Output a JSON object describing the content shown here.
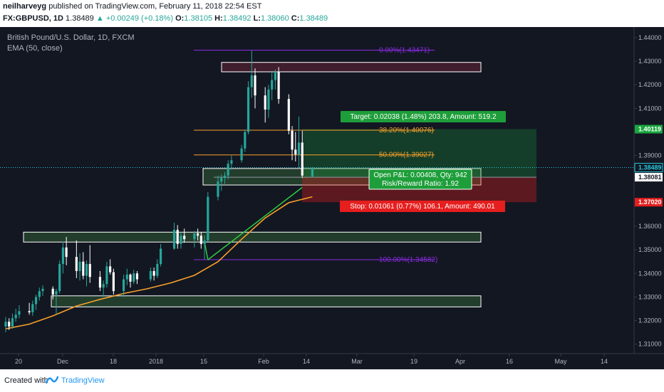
{
  "header": {
    "author": "neilharveyg",
    "published": "published on TradingView.com, February 11, 2018 22:54 EST",
    "symbol": "FX:GBPUSD, 1D",
    "last": "1.38489",
    "change": "+0.00249 (+0.18%)",
    "o_label": "O:",
    "o": "1.38105",
    "h_label": "H:",
    "h": "1.38492",
    "l_label": "L:",
    "l": "1.38060",
    "c_label": "C:",
    "c": "1.38489"
  },
  "legend": {
    "title": "British Pound/U.S. Dollar, 1D, FXCM",
    "indicator": "EMA (50, close)"
  },
  "footer": {
    "created_with": "Created with",
    "brand": "TradingView"
  },
  "colors": {
    "background": "#131722",
    "bull": "#26a69a",
    "bear": "#ffffff",
    "ema": "#f7a02a",
    "fib_purple": "#8a2be2",
    "fib_orange": "#f7a02a",
    "target": "#1aa73f",
    "stop": "#e61e1e",
    "price_line": "#26c6da"
  },
  "chart_data": {
    "type": "candlestick",
    "title": "British Pound/U.S. Dollar, 1D, FXCM",
    "ylim": [
      1.306,
      1.4445
    ],
    "y_ticks": [
      "1.44000",
      "1.43000",
      "1.42000",
      "1.41000",
      "1.39000",
      "1.36000",
      "1.35000",
      "1.34000",
      "1.33000",
      "1.32000",
      "1.31000"
    ],
    "x_ticks": [
      "20",
      "Dec",
      "18",
      "2018",
      "15",
      "Feb",
      "14",
      "Mar",
      "19",
      "Apr",
      "16",
      "May",
      "14"
    ],
    "price_tags": [
      {
        "value": 1.40119,
        "label": "1.40119",
        "style": "target"
      },
      {
        "value": 1.38489,
        "label": "1.38489",
        "style": "current"
      },
      {
        "value": 1.38081,
        "label": "1.38081",
        "style": "entry"
      },
      {
        "value": 1.3702,
        "label": "1.37020",
        "style": "stop"
      }
    ],
    "fib_levels": [
      {
        "label": "0.00%(1.43471)",
        "value": 1.43471,
        "color": "purple"
      },
      {
        "label": "38.20%(1.40076)",
        "value": 1.40076,
        "color": "orange"
      },
      {
        "label": "50.00%(1.39027)",
        "value": 1.39027,
        "color": "orange"
      },
      {
        "label": "100.00%(1.34582)",
        "value": 1.34582,
        "color": "purple"
      }
    ],
    "zones": [
      {
        "top": 1.4295,
        "bottom": 1.4255,
        "type": "supply"
      },
      {
        "top": 1.3845,
        "bottom": 1.3775,
        "type": "demand"
      },
      {
        "top": 1.3575,
        "bottom": 1.3533,
        "type": "demand"
      },
      {
        "top": 1.3305,
        "bottom": 1.3258,
        "type": "demand"
      }
    ],
    "position": {
      "target_label": "Target: 0.02038 (1.48%) 203.8, Amount: 519.2",
      "stop_label": "Stop: 0.01061 (0.77%) 106.1, Amount: 490.01",
      "pnl_label": "Open P&L: 0.00408, Qty: 942",
      "rr_label": "Risk/Reward Ratio: 1.92",
      "entry": 1.38081,
      "target": 1.40119,
      "stop": 1.3702
    },
    "trend_lines": [
      {
        "x1": "2018-01-12",
        "y1": 1.3458,
        "x2": "2018-02-09",
        "y2": 1.3765
      }
    ],
    "candles_ohlc": [
      [
        "2017-11-13",
        1.3175,
        1.3215,
        1.315,
        1.3195
      ],
      [
        "2017-11-14",
        1.3195,
        1.321,
        1.316,
        1.3175
      ],
      [
        "2017-11-15",
        1.3175,
        1.323,
        1.3165,
        1.321
      ],
      [
        "2017-11-16",
        1.321,
        1.325,
        1.3195,
        1.3225
      ],
      [
        "2017-11-17",
        1.3225,
        1.3265,
        1.321,
        1.324
      ],
      [
        "2017-11-20",
        1.324,
        1.3275,
        1.3225,
        1.3235
      ],
      [
        "2017-11-21",
        1.3235,
        1.3285,
        1.322,
        1.327
      ],
      [
        "2017-11-22",
        1.327,
        1.331,
        1.3245,
        1.33
      ],
      [
        "2017-11-23",
        1.33,
        1.334,
        1.3285,
        1.3325
      ],
      [
        "2017-11-24",
        1.3325,
        1.335,
        1.3305,
        1.3335
      ],
      [
        "2017-11-27",
        1.3335,
        1.3345,
        1.329,
        1.331
      ],
      [
        "2017-11-28",
        1.331,
        1.3335,
        1.3225,
        1.3325
      ],
      [
        "2017-11-29",
        1.3325,
        1.3455,
        1.3315,
        1.344
      ],
      [
        "2017-11-30",
        1.344,
        1.3535,
        1.34,
        1.351
      ],
      [
        "2017-12-01",
        1.351,
        1.3555,
        1.3435,
        1.347
      ],
      [
        "2017-12-04",
        1.347,
        1.354,
        1.338,
        1.341
      ],
      [
        "2017-12-05",
        1.341,
        1.3485,
        1.337,
        1.345
      ],
      [
        "2017-12-06",
        1.345,
        1.349,
        1.3375,
        1.339
      ],
      [
        "2017-12-07",
        1.339,
        1.3455,
        1.3345,
        1.344
      ],
      [
        "2017-12-08",
        1.344,
        1.352,
        1.336,
        1.3385
      ],
      [
        "2017-12-11",
        1.3385,
        1.341,
        1.3325,
        1.334
      ],
      [
        "2017-12-12",
        1.334,
        1.337,
        1.33,
        1.3355
      ],
      [
        "2017-12-13",
        1.3355,
        1.345,
        1.334,
        1.343
      ],
      [
        "2017-12-14",
        1.343,
        1.346,
        1.3395,
        1.3405
      ],
      [
        "2017-12-15",
        1.3405,
        1.342,
        1.331,
        1.3325
      ],
      [
        "2017-12-18",
        1.3325,
        1.3395,
        1.33,
        1.3375
      ],
      [
        "2017-12-19",
        1.3375,
        1.342,
        1.335,
        1.3395
      ],
      [
        "2017-12-20",
        1.3395,
        1.34,
        1.334,
        1.3365
      ],
      [
        "2017-12-21",
        1.3365,
        1.3415,
        1.3355,
        1.34
      ],
      [
        "2017-12-22",
        1.34,
        1.341,
        1.3355,
        1.3375
      ],
      [
        "2017-12-26",
        1.3375,
        1.3425,
        1.3365,
        1.341
      ],
      [
        "2017-12-27",
        1.341,
        1.3425,
        1.337,
        1.339
      ],
      [
        "2017-12-28",
        1.339,
        1.346,
        1.338,
        1.344
      ],
      [
        "2017-12-29",
        1.344,
        1.3525,
        1.343,
        1.3505
      ],
      [
        "2018-01-02",
        1.3505,
        1.3615,
        1.35,
        1.3585
      ],
      [
        "2018-01-03",
        1.3585,
        1.3605,
        1.3505,
        1.3525
      ],
      [
        "2018-01-04",
        1.3525,
        1.3575,
        1.3505,
        1.356
      ],
      [
        "2018-01-05",
        1.356,
        1.359,
        1.353,
        1.3545
      ],
      [
        "2018-01-08",
        1.3545,
        1.358,
        1.351,
        1.357
      ],
      [
        "2018-01-09",
        1.357,
        1.359,
        1.354,
        1.356
      ],
      [
        "2018-01-10",
        1.356,
        1.3575,
        1.3505,
        1.3525
      ],
      [
        "2018-01-11",
        1.3525,
        1.356,
        1.346,
        1.354
      ],
      [
        "2018-01-12",
        1.354,
        1.3745,
        1.3535,
        1.3725
      ],
      [
        "2018-01-15",
        1.3725,
        1.3815,
        1.371,
        1.379
      ],
      [
        "2018-01-16",
        1.379,
        1.382,
        1.375,
        1.3805
      ],
      [
        "2018-01-17",
        1.3805,
        1.383,
        1.378,
        1.3815
      ],
      [
        "2018-01-18",
        1.3815,
        1.388,
        1.38,
        1.3865
      ],
      [
        "2018-01-19",
        1.3865,
        1.39,
        1.384,
        1.388
      ],
      [
        "2018-01-22",
        1.388,
        1.3945,
        1.387,
        1.393
      ],
      [
        "2018-01-23",
        1.393,
        1.401,
        1.3915,
        1.4
      ],
      [
        "2018-01-24",
        1.4,
        1.4215,
        1.399,
        1.419
      ],
      [
        "2018-01-25",
        1.419,
        1.4345,
        1.4145,
        1.424
      ],
      [
        "2018-01-26",
        1.424,
        1.427,
        1.41,
        1.4155
      ],
      [
        "2018-01-29",
        1.4155,
        1.419,
        1.404,
        1.4095
      ],
      [
        "2018-01-30",
        1.4095,
        1.42,
        1.406,
        1.418
      ],
      [
        "2018-01-31",
        1.418,
        1.4255,
        1.4135,
        1.422
      ],
      [
        "2018-02-01",
        1.422,
        1.4265,
        1.418,
        1.4255
      ],
      [
        "2018-02-02",
        1.4255,
        1.4275,
        1.412,
        1.414
      ],
      [
        "2018-02-05",
        1.414,
        1.416,
        1.399,
        1.4005
      ],
      [
        "2018-02-06",
        1.4005,
        1.4025,
        1.388,
        1.3925
      ],
      [
        "2018-02-07",
        1.3925,
        1.4,
        1.3875,
        1.3905
      ],
      [
        "2018-02-08",
        1.3905,
        1.4065,
        1.3845,
        1.3955
      ],
      [
        "2018-02-09",
        1.3955,
        1.4005,
        1.3805,
        1.3815
      ],
      [
        "2018-02-12",
        1.3811,
        1.3849,
        1.3806,
        1.3849
      ]
    ],
    "ema_series": [
      [
        "2017-11-13",
        1.3165
      ],
      [
        "2017-11-20",
        1.3185
      ],
      [
        "2017-11-27",
        1.322
      ],
      [
        "2017-12-04",
        1.3262
      ],
      [
        "2017-12-11",
        1.329
      ],
      [
        "2017-12-18",
        1.3315
      ],
      [
        "2017-12-25",
        1.3335
      ],
      [
        "2018-01-01",
        1.336
      ],
      [
        "2018-01-08",
        1.3392
      ],
      [
        "2018-01-15",
        1.345
      ],
      [
        "2018-01-22",
        1.3545
      ],
      [
        "2018-01-29",
        1.3635
      ],
      [
        "2018-02-05",
        1.37
      ],
      [
        "2018-02-12",
        1.3725
      ]
    ]
  }
}
